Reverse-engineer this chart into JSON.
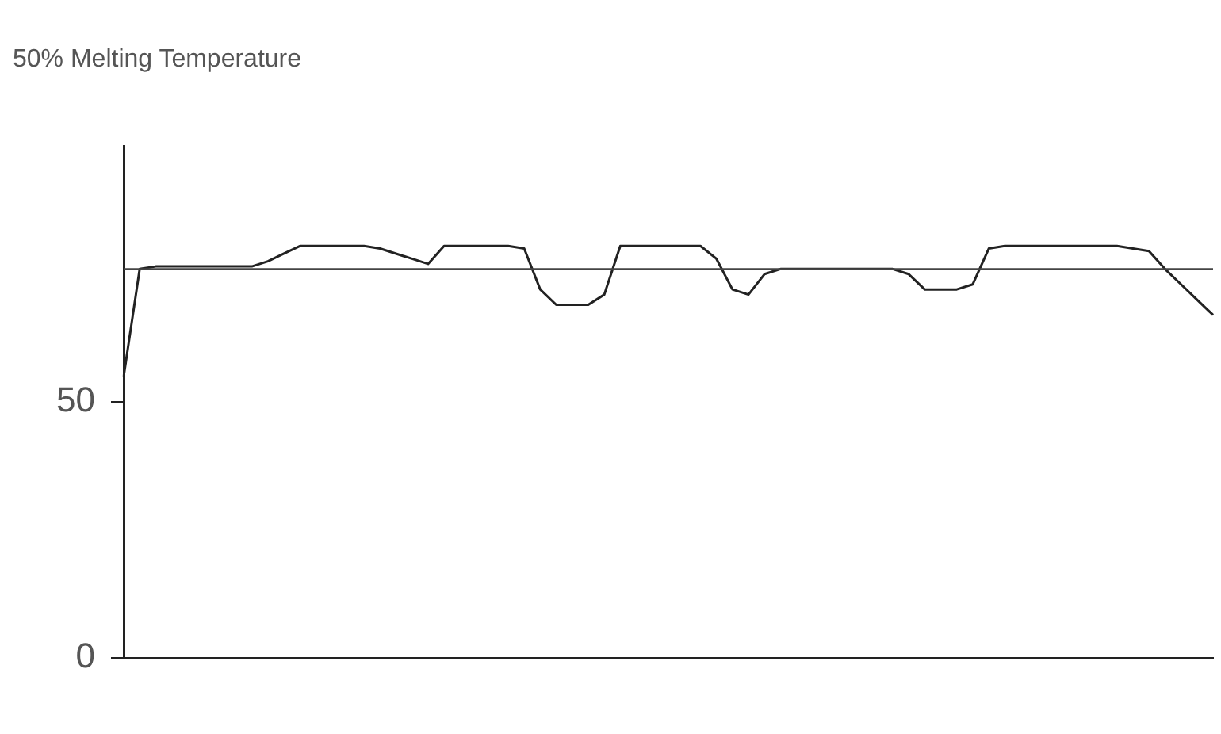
{
  "chart_data": {
    "type": "line",
    "title": "50% Melting Temperature",
    "categories": [
      null,
      null,
      null,
      null,
      null,
      null,
      null,
      null,
      null,
      null,
      null,
      null,
      null,
      null,
      null,
      null,
      null,
      null,
      null,
      null,
      null,
      null,
      null,
      null,
      null,
      null,
      null,
      null,
      null,
      null,
      null,
      null,
      null,
      null,
      null,
      null,
      null,
      null,
      null,
      null,
      null,
      null,
      null,
      null,
      null,
      null,
      null,
      null,
      null,
      null,
      null,
      null,
      null,
      null,
      null,
      null,
      null,
      null,
      null,
      null,
      null,
      null,
      null,
      null,
      null,
      null,
      null,
      null,
      null
    ],
    "series": [
      {
        "color": "#222222",
        "values": [
          55,
          76,
          76.5,
          76.5,
          76.5,
          76.5,
          76.5,
          76.5,
          76.5,
          77.5,
          79,
          80.5,
          80.5,
          80.5,
          80.5,
          80.5,
          80,
          79,
          78,
          77,
          80.5,
          80.5,
          80.5,
          80.5,
          80.5,
          80,
          72,
          69,
          69,
          69,
          71,
          80.5,
          80.5,
          80.5,
          80.5,
          80.5,
          80.5,
          78,
          72,
          71,
          75,
          76,
          76,
          76,
          76,
          76,
          76,
          76,
          76,
          75,
          72,
          72,
          72,
          73,
          80,
          80.5,
          80.5,
          80.5,
          80.5,
          80.5,
          80.5,
          80.5,
          80.5,
          80,
          79.5,
          76,
          73,
          70,
          67
        ]
      }
    ],
    "ylim": [
      0,
      100
    ],
    "yticks": [
      0,
      50
    ],
    "grid": false,
    "legend": false,
    "marker": "none",
    "line_style": "solid",
    "ref_lines": [
      {
        "axis": "y",
        "value": 76,
        "color": "#444444"
      }
    ]
  }
}
